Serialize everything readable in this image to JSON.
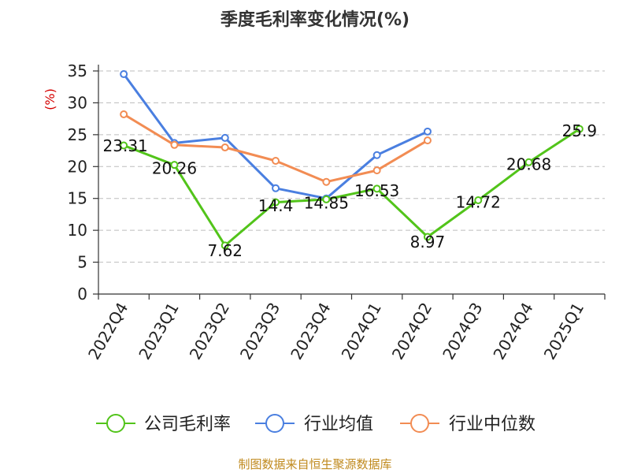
{
  "chart_data": {
    "type": "line",
    "title": "季度毛利率变化情况(%)",
    "ylabel": "(%)",
    "ylim": [
      0,
      35
    ],
    "yticks": [
      0,
      5,
      10,
      15,
      20,
      25,
      30,
      35
    ],
    "grid": true,
    "legend_position": "bottom",
    "categories": [
      "2022Q4",
      "2023Q1",
      "2023Q2",
      "2023Q3",
      "2023Q4",
      "2024Q1",
      "2024Q2",
      "2024Q3",
      "2024Q4",
      "2025Q1"
    ],
    "series": [
      {
        "name": "公司毛利率",
        "color": "#52c41a",
        "values": [
          23.31,
          20.26,
          7.62,
          14.4,
          14.85,
          16.53,
          8.97,
          14.72,
          20.68,
          25.9
        ],
        "labels": [
          "23.31",
          "20.26",
          "7.62",
          "14.4",
          "14.85",
          "16.53",
          "8.97",
          "14.72",
          "20.68",
          "25.9"
        ]
      },
      {
        "name": "行业均值",
        "color": "#4a7fe0",
        "values": [
          34.5,
          23.7,
          24.5,
          16.6,
          15.0,
          21.8,
          25.5,
          null,
          null,
          null
        ]
      },
      {
        "name": "行业中位数",
        "color": "#f28c53",
        "values": [
          28.2,
          23.4,
          23.0,
          20.9,
          17.6,
          19.4,
          24.1,
          null,
          null,
          null
        ]
      }
    ]
  },
  "source_text": "制图数据来自恒生聚源数据库"
}
